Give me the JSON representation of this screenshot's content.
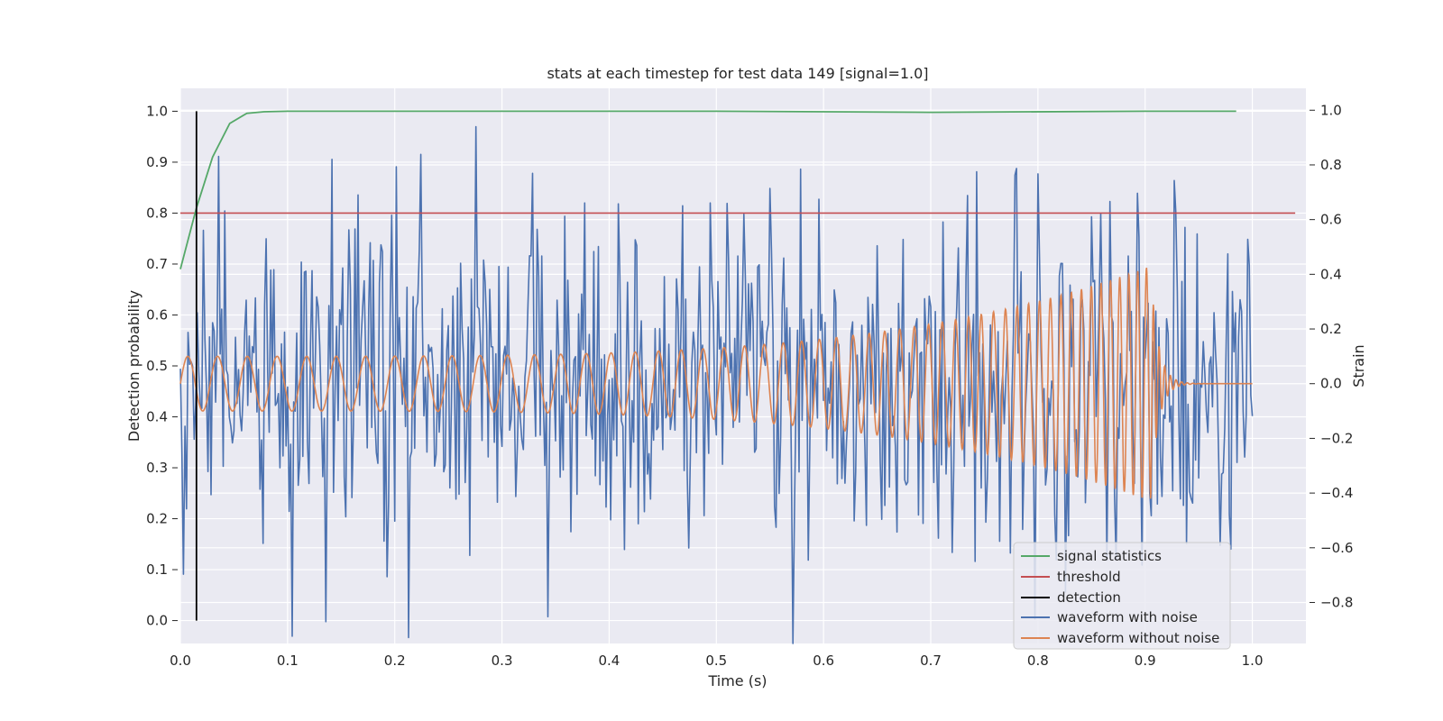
{
  "chart_data": {
    "type": "line",
    "title": "stats at each timestep for test data 149 [signal=1.0]",
    "xlabel": "Time (s)",
    "ylabel_left": "Detection probability",
    "ylabel_right": "Strain",
    "xlim": [
      0.0,
      1.05
    ],
    "ylim_left": [
      -0.045,
      1.045
    ],
    "ylim_right": [
      -0.95,
      1.08
    ],
    "x_ticks": [
      "0.0",
      "0.1",
      "0.2",
      "0.3",
      "0.4",
      "0.5",
      "0.6",
      "0.7",
      "0.8",
      "0.9",
      "1.0"
    ],
    "y_left_ticks": [
      "0.0",
      "0.1",
      "0.2",
      "0.3",
      "0.4",
      "0.5",
      "0.6",
      "0.7",
      "0.8",
      "0.9",
      "1.0"
    ],
    "y_right_ticks": [
      "−0.8",
      "−0.6",
      "−0.4",
      "−0.2",
      "0.0",
      "0.2",
      "0.4",
      "0.6",
      "0.8",
      "1.0"
    ],
    "grid": true,
    "legend_position": "lower-right",
    "colors": {
      "background": "#eaeaf2",
      "signal_statistics": "#55a868",
      "threshold": "#c44e52",
      "detection": "#000000",
      "waveform_with_noise": "#4c72b0",
      "waveform_without_noise": "#dd8452"
    },
    "legend": [
      "signal statistics",
      "threshold",
      "detection",
      "waveform with noise",
      "waveform without noise"
    ],
    "signal_statistics": {
      "axis": "left",
      "x": [
        0.0,
        0.015,
        0.03,
        0.046,
        0.062,
        0.078,
        0.1,
        0.2,
        0.3,
        0.5,
        0.7,
        0.9,
        0.985
      ],
      "y": [
        0.69,
        0.81,
        0.91,
        0.976,
        0.996,
        0.999,
        1.0,
        1.0,
        1.0,
        1.0,
        0.998,
        1.0,
        1.0
      ]
    },
    "threshold": {
      "axis": "left",
      "value": 0.8,
      "x_range": [
        0.0,
        1.04
      ]
    },
    "detection": {
      "axis": "left",
      "x": 0.015,
      "y_range": [
        0.0,
        1.0
      ]
    },
    "waveform_without_noise": {
      "axis": "right",
      "description_model": "chirp",
      "x_start": 0.0,
      "x_end": 1.0,
      "merger_time": 0.905,
      "start_amplitude": 0.1,
      "peak_amplitude": 0.43,
      "start_frequency_hz": 36,
      "end_frequency_hz": 125
    },
    "waveform_with_noise": {
      "axis": "right",
      "x_start": 0.0,
      "x_end": 1.0,
      "samples": 700,
      "y_range": [
        -0.95,
        0.94
      ]
    }
  }
}
